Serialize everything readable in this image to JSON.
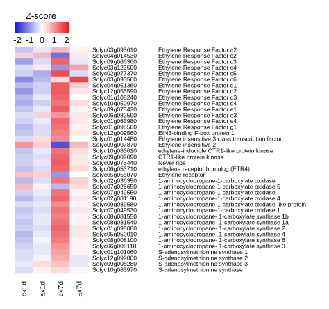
{
  "chart_data": {
    "type": "heatmap",
    "legend": {
      "title": "Z-score",
      "tick_labels": [
        "-2",
        "-1",
        "0",
        "1",
        "2"
      ],
      "range": [
        -2,
        2
      ],
      "colors": {
        "low": "#1515c8",
        "mid": "#ffffff",
        "high": "#e8141e"
      }
    },
    "columns": [
      "ck1d",
      "ax1d",
      "ck7d",
      "ax7d"
    ],
    "rows": [
      {
        "id": "Solyc03g093610",
        "name": "Ethylene Response Factor a2",
        "values": [
          -0.5,
          -0.2,
          0.6,
          0.1
        ]
      },
      {
        "id": "Solyc04g014530",
        "name": "Ethylene Response Factor c2",
        "values": [
          0.4,
          0.6,
          -1.2,
          0.2
        ]
      },
      {
        "id": "Solyc09g066360",
        "name": "Ethylene Response Factor c3",
        "values": [
          -0.8,
          -0.3,
          1.3,
          -0.2
        ]
      },
      {
        "id": "Solyc03g123500",
        "name": "Ethylene Response Factor c4",
        "values": [
          -0.3,
          0.2,
          -0.9,
          0.8
        ]
      },
      {
        "id": "Solyc02g077370",
        "name": "Ethylene Response Factor c5",
        "values": [
          -0.4,
          -0.7,
          1.5,
          -0.3
        ]
      },
      {
        "id": "Solyc03g093560",
        "name": "Ethylene Response Factor c6",
        "values": [
          -1.0,
          -0.6,
          0.3,
          1.6
        ]
      },
      {
        "id": "Solyc04g051360",
        "name": "Ethylene Response Factor d1",
        "values": [
          -0.6,
          -0.4,
          1.4,
          0.4
        ]
      },
      {
        "id": "Solyc12g056590",
        "name": "Ethylene Response Factor d2",
        "values": [
          -0.9,
          -0.4,
          1.4,
          0.2
        ]
      },
      {
        "id": "Solyc01g108240",
        "name": "Ethylene Response Factor d3",
        "values": [
          -0.6,
          -0.2,
          1.3,
          0.0
        ]
      },
      {
        "id": "Solyc10g050970",
        "name": "Ethylene Response Factor d4",
        "values": [
          -0.7,
          -0.4,
          1.2,
          0.3
        ]
      },
      {
        "id": "Solyc09g075420",
        "name": "Ethylene Response Factor e1",
        "values": [
          -0.5,
          -0.2,
          1.4,
          0.1
        ]
      },
      {
        "id": "Solyc06g082590",
        "name": "Ethylene Response Factor e3",
        "values": [
          -0.3,
          0.4,
          0.9,
          0.2
        ]
      },
      {
        "id": "Solyc01g065980",
        "name": "Ethylene Response Factor e4",
        "values": [
          -0.4,
          -0.2,
          1.3,
          0.2
        ]
      },
      {
        "id": "Solyc01g095500",
        "name": "Ethylene Response Factor g1",
        "values": [
          -0.6,
          -0.3,
          1.2,
          0.1
        ]
      },
      {
        "id": "Solyc12g009560",
        "name": "EIN3-binding F-box protein 1",
        "values": [
          -0.5,
          -0.3,
          1.1,
          0.2
        ]
      },
      {
        "id": "Solyc01g014480",
        "name": "Ethylene insensitive 3 class transcription factor",
        "values": [
          -0.3,
          0.3,
          1.0,
          0.0
        ]
      },
      {
        "id": "Solyc09g007870",
        "name": "Ethylene insensitive 2",
        "values": [
          0.9,
          0.4,
          -1.5,
          0.6
        ]
      },
      {
        "id": "Solyc10g083610",
        "name": "ethylene-inducible CTR1-like protein kinase",
        "values": [
          -0.5,
          -0.2,
          1.2,
          0.3
        ]
      },
      {
        "id": "Solyc09g009090",
        "name": "CTR1-like protein kinase",
        "values": [
          -0.4,
          -0.3,
          1.3,
          0.2
        ]
      },
      {
        "id": "Solyc09g075440",
        "name": "Never ripe",
        "values": [
          -0.4,
          -0.2,
          1.4,
          0.2
        ]
      },
      {
        "id": "Solyc06g053710",
        "name": "ethylene receptor homolog (ETR4)",
        "values": [
          -0.5,
          -0.3,
          1.3,
          0.3
        ]
      },
      {
        "id": "Solyc05g055070",
        "name": "Ethylene receptor",
        "values": [
          0.5,
          0.4,
          -0.9,
          0.0
        ]
      },
      {
        "id": "Solyc02g036350",
        "name": "1-aminocyclopropane-1-carboxylate oxidase",
        "values": [
          -0.6,
          -0.3,
          1.2,
          0.4
        ]
      },
      {
        "id": "Solyc07g026650",
        "name": "1-aminocyclopropane-1-carboxylate oxidase 5",
        "values": [
          0.6,
          0.1,
          -0.6,
          0.3
        ]
      },
      {
        "id": "Solyc07g049550",
        "name": "1-aminocyclopropane-1-carboxylate oxidase",
        "values": [
          -0.4,
          -0.2,
          1.2,
          0.1
        ]
      },
      {
        "id": "Solyc02g081190",
        "name": "1-aminocyclopropane-1-carboxylate oxidase 4",
        "values": [
          -0.6,
          -0.3,
          1.3,
          0.2
        ]
      },
      {
        "id": "Solyc09g089580",
        "name": "1-aminocyclopropane-1-carboxylate oxidase-like protein",
        "values": [
          -0.3,
          -0.2,
          1.0,
          0.1
        ]
      },
      {
        "id": "Solyc07g049530",
        "name": "1-aminocyclopropane-1-carboxylate oxidase 1",
        "values": [
          -0.5,
          -0.3,
          1.2,
          0.2
        ]
      },
      {
        "id": "Solyc08g081550",
        "name": "1-aminocyclopropane- 1-carboxylate synthase 1b",
        "values": [
          -0.4,
          -0.2,
          1.1,
          0.1
        ]
      },
      {
        "id": "Solyc08g081540",
        "name": "1-aminocyclopropane- 1-carboxylate synthase 1a",
        "values": [
          -0.5,
          -0.2,
          1.2,
          0.1
        ]
      },
      {
        "id": "Solyc01g095080",
        "name": "1-aminocyclopropane- 1-carboxylate synthase 2",
        "values": [
          -0.4,
          -0.3,
          1.3,
          0.2
        ]
      },
      {
        "id": "Solyc05g050010",
        "name": "1-aminocyclopropane- 1-carboxylate synthase 4",
        "values": [
          -0.6,
          -0.2,
          1.2,
          0.2
        ]
      },
      {
        "id": "Solyc08g008100",
        "name": "1-aminocyclopropane- 1-carboxylate synthase 6",
        "values": [
          -0.5,
          -0.1,
          1.1,
          0.1
        ]
      },
      {
        "id": "Solyc06g008110",
        "name": "1-aminocyclopropane- 1-carboxylate synthase 3",
        "values": [
          -0.4,
          -0.2,
          0.9,
          0.1
        ]
      },
      {
        "id": "Solyc01g101060",
        "name": "S-adenosylmethionine synthase 1",
        "values": [
          -0.3,
          -0.2,
          0.8,
          0.1
        ]
      },
      {
        "id": "Solyc12g099000",
        "name": "S-adenosylmethionine synthase 2",
        "values": [
          -0.3,
          -0.1,
          0.7,
          -0.2
        ]
      },
      {
        "id": "Solyc09g008280",
        "name": "S-adenosylmethionine synthase 3",
        "values": [
          -0.2,
          0.3,
          0.5,
          -0.2
        ]
      },
      {
        "id": "Solyc10g083970",
        "name": "S-adenosylmethionine synthase",
        "values": [
          -0.3,
          0.1,
          0.3,
          0.1
        ]
      }
    ]
  }
}
